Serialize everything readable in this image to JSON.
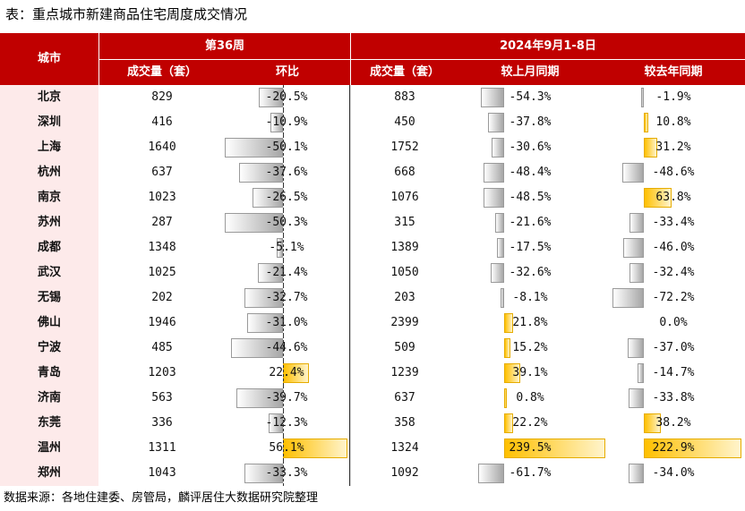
{
  "title": "表：重点城市新建商品住宅周度成交情况",
  "footer": "数据来源：各地住建委、房管局，麟评居住大数据研究院整理",
  "header": {
    "city": "城市",
    "group1": "第36周",
    "group2": "2024年9月1-8日",
    "col_volume": "成交量（套）",
    "col_wow": "环比",
    "col_volume2": "成交量（套）",
    "col_mom": "较上月同期",
    "col_yoy": "较去年同期"
  },
  "colors": {
    "header": "#c00000",
    "city_bg": "#fdeaea",
    "positive": "#ffc000",
    "negative": "#a6a6a6"
  },
  "rows": [
    {
      "city": "北京",
      "vol": "829",
      "wow": "-20.5%",
      "vol2": "883",
      "mom": "-54.3%",
      "yoy": "-1.9%"
    },
    {
      "city": "深圳",
      "vol": "416",
      "wow": "-10.9%",
      "vol2": "450",
      "mom": "-37.8%",
      "yoy": "10.8%"
    },
    {
      "city": "上海",
      "vol": "1640",
      "wow": "-50.1%",
      "vol2": "1752",
      "mom": "-30.6%",
      "yoy": "31.2%"
    },
    {
      "city": "杭州",
      "vol": "637",
      "wow": "-37.6%",
      "vol2": "668",
      "mom": "-48.4%",
      "yoy": "-48.6%"
    },
    {
      "city": "南京",
      "vol": "1023",
      "wow": "-26.5%",
      "vol2": "1076",
      "mom": "-48.5%",
      "yoy": "63.8%"
    },
    {
      "city": "苏州",
      "vol": "287",
      "wow": "-50.3%",
      "vol2": "315",
      "mom": "-21.6%",
      "yoy": "-33.4%"
    },
    {
      "city": "成都",
      "vol": "1348",
      "wow": "-5.1%",
      "vol2": "1389",
      "mom": "-17.5%",
      "yoy": "-46.0%"
    },
    {
      "city": "武汉",
      "vol": "1025",
      "wow": "-21.4%",
      "vol2": "1050",
      "mom": "-32.6%",
      "yoy": "-32.4%"
    },
    {
      "city": "无锡",
      "vol": "202",
      "wow": "-32.7%",
      "vol2": "203",
      "mom": "-8.1%",
      "yoy": "-72.2%"
    },
    {
      "city": "佛山",
      "vol": "1946",
      "wow": "-31.0%",
      "vol2": "2399",
      "mom": "21.8%",
      "yoy": "0.0%"
    },
    {
      "city": "宁波",
      "vol": "485",
      "wow": "-44.6%",
      "vol2": "509",
      "mom": "15.2%",
      "yoy": "-37.0%"
    },
    {
      "city": "青岛",
      "vol": "1203",
      "wow": "22.4%",
      "vol2": "1239",
      "mom": "39.1%",
      "yoy": "-14.7%"
    },
    {
      "city": "济南",
      "vol": "563",
      "wow": "-39.7%",
      "vol2": "637",
      "mom": "0.8%",
      "yoy": "-33.8%"
    },
    {
      "city": "东莞",
      "vol": "336",
      "wow": "-12.3%",
      "vol2": "358",
      "mom": "22.2%",
      "yoy": "38.2%"
    },
    {
      "city": "温州",
      "vol": "1311",
      "wow": "56.1%",
      "vol2": "1324",
      "mom": "239.5%",
      "yoy": "222.9%"
    },
    {
      "city": "郑州",
      "vol": "1043",
      "wow": "-33.3%",
      "vol2": "1092",
      "mom": "-61.7%",
      "yoy": "-34.0%"
    }
  ]
}
